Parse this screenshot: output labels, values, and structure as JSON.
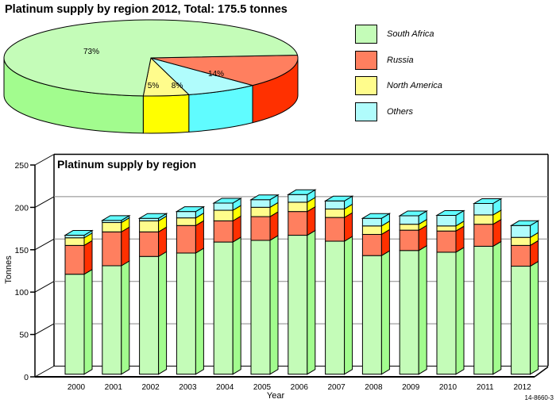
{
  "chart_data": [
    {
      "type": "pie",
      "title": "Platinum supply by region 2012, Total: 175.5 tonnes",
      "slices": [
        {
          "name": "South Africa",
          "percent": 73,
          "label": "73%",
          "color": "#c4fcb8",
          "side_color": "#a2fc8e"
        },
        {
          "name": "Russia",
          "percent": 14,
          "label": "14%",
          "color": "#ff7f5f",
          "side_color": "#ff3000"
        },
        {
          "name": "North America",
          "percent": 5,
          "label": "5%",
          "color": "#fffc8c",
          "side_color": "#ffff00"
        },
        {
          "name": "Others",
          "percent": 8,
          "label": "8%",
          "color": "#b0fcfc",
          "side_color": "#60fcff"
        }
      ],
      "legend": {
        "placement": "right",
        "entries": [
          "South Africa",
          "Russia",
          "North America",
          "Others"
        ]
      }
    },
    {
      "type": "bar",
      "stacked": true,
      "three_d": true,
      "title": "Platinum supply by region",
      "xlabel": "Year",
      "ylabel": "Tonnes",
      "ylim": [
        0,
        250
      ],
      "yticks": [
        "0",
        "50",
        "100",
        "150",
        "200",
        "250"
      ],
      "grid": true,
      "categories": [
        "2000",
        "2001",
        "2002",
        "2003",
        "2004",
        "2005",
        "2006",
        "2007",
        "2008",
        "2009",
        "2010",
        "2011",
        "2012"
      ],
      "series": [
        {
          "name": "South Africa",
          "color": "#c4fcb8",
          "side_color": "#a2fc8e",
          "values": [
            118,
            128,
            139,
            143,
            156,
            158,
            164,
            157,
            140,
            146,
            144,
            151,
            127.5
          ]
        },
        {
          "name": "Russia",
          "color": "#ff7f5f",
          "side_color": "#ff3000",
          "values": [
            34,
            40,
            29,
            32.5,
            25,
            28,
            28,
            28,
            25,
            24,
            25,
            26,
            24.5
          ]
        },
        {
          "name": "North America",
          "color": "#fffc8c",
          "side_color": "#ffff00",
          "values": [
            9,
            11,
            13,
            9,
            12.5,
            11,
            11,
            10,
            10,
            7,
            6,
            11,
            9.5
          ]
        },
        {
          "name": "Others",
          "color": "#b0fcfc",
          "side_color": "#60fcff",
          "values": [
            3,
            2.5,
            3,
            7.5,
            8.5,
            9,
            9,
            9.5,
            9,
            10,
            12.5,
            13.5,
            14
          ]
        }
      ],
      "footnote": "14-8660-3"
    }
  ]
}
